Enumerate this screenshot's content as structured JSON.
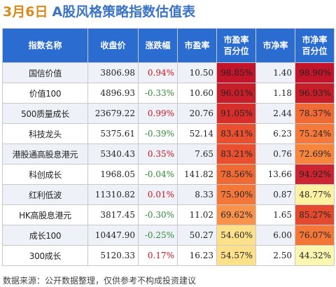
{
  "header": {
    "date": "3月6日",
    "title": "A股风格策略指数估值表"
  },
  "columns": [
    "指数名称",
    "收盘价",
    "涨跌幅",
    "市盈率",
    "市盈率百分分位",
    "市净率",
    "市净率百分分位"
  ],
  "columns_display": [
    [
      "指数名称"
    ],
    [
      "收盘价"
    ],
    [
      "涨跌幅"
    ],
    [
      "市盈率"
    ],
    [
      "市盈率",
      "百分位"
    ],
    [
      "市净率"
    ],
    [
      "市净率",
      "百分位"
    ]
  ],
  "colors": {
    "header_bg": "#2a6ccf",
    "up": "#c8161d",
    "down": "#2f8a36",
    "title": "#3b74c4",
    "date": "#d98a1c"
  },
  "rows": [
    {
      "name": "国信价值",
      "close": "3806.98",
      "change": "0.94%",
      "pe": "10.50",
      "pe_pct": "98.85%",
      "pb": "1.40",
      "pb_pct": "98.90%",
      "pe_color": "#c2142a",
      "pb_color": "#c2142a",
      "dir": "up"
    },
    {
      "name": "价值100",
      "close": "4896.93",
      "change": "-0.33%",
      "pe": "10.60",
      "pe_pct": "96.01%",
      "pb": "1.18",
      "pb_pct": "96.93%",
      "pe_color": "#c81e2a",
      "pb_color": "#c81e2a",
      "dir": "down"
    },
    {
      "name": "500质量成长",
      "close": "23679.22",
      "change": "0.99%",
      "pe": "20.76",
      "pe_pct": "91.05%",
      "pb": "2.44",
      "pb_pct": "78.37%",
      "pe_color": "#d62e2a",
      "pb_color": "#f06a35",
      "dir": "up"
    },
    {
      "name": "科技龙头",
      "close": "5375.61",
      "change": "-0.39%",
      "pe": "52.14",
      "pe_pct": "83.41%",
      "pb": "6.23",
      "pb_pct": "75.24%",
      "pe_color": "#e8502f",
      "pb_color": "#f4793a",
      "dir": "down"
    },
    {
      "name": "港股通高股息港元",
      "close": "5340.43",
      "change": "0.35%",
      "pe": "7.65",
      "pe_pct": "83.21%",
      "pb": "0.76",
      "pb_pct": "72.69%",
      "pe_color": "#e8502f",
      "pb_color": "#f6853d",
      "dir": "up"
    },
    {
      "name": "科创成长",
      "close": "1968.05",
      "change": "-0.04%",
      "pe": "141.82",
      "pe_pct": "78.56%",
      "pb": "13.66",
      "pb_pct": "94.92%",
      "pe_color": "#f06a35",
      "pb_color": "#cc2430",
      "dir": "down"
    },
    {
      "name": "红利低波",
      "close": "11310.82",
      "change": "0.01%",
      "pe": "8.33",
      "pe_pct": "75.90%",
      "pb": "0.87",
      "pb_pct": "48.77%",
      "pe_color": "#f4773a",
      "pb_color": "#fdf1a2",
      "dir": "up"
    },
    {
      "name": "HK高股息港元",
      "close": "3817.45",
      "change": "-0.30%",
      "pe": "11.02",
      "pe_pct": "69.62%",
      "pb": "1.65",
      "pb_pct": "85.27%",
      "pe_color": "#f9924a",
      "pb_color": "#e44a2f",
      "dir": "down"
    },
    {
      "name": "成长100",
      "close": "10447.90",
      "change": "-0.25%",
      "pe": "50.27",
      "pe_pct": "54.60%",
      "pb": "6.00",
      "pb_pct": "76.07%",
      "pe_color": "#fde08a",
      "pb_color": "#f4773a",
      "dir": "down"
    },
    {
      "name": "300成长",
      "close": "5120.33",
      "change": "0.17%",
      "pe": "16.23",
      "pe_pct": "54.57%",
      "pb": "2.50",
      "pb_pct": "44.32%",
      "pe_color": "#fde08a",
      "pb_color": "#fbf6b0",
      "dir": "up"
    }
  ],
  "footer": {
    "source": "数据来源：公开数据整理，仅供参考不构成投资建议"
  }
}
